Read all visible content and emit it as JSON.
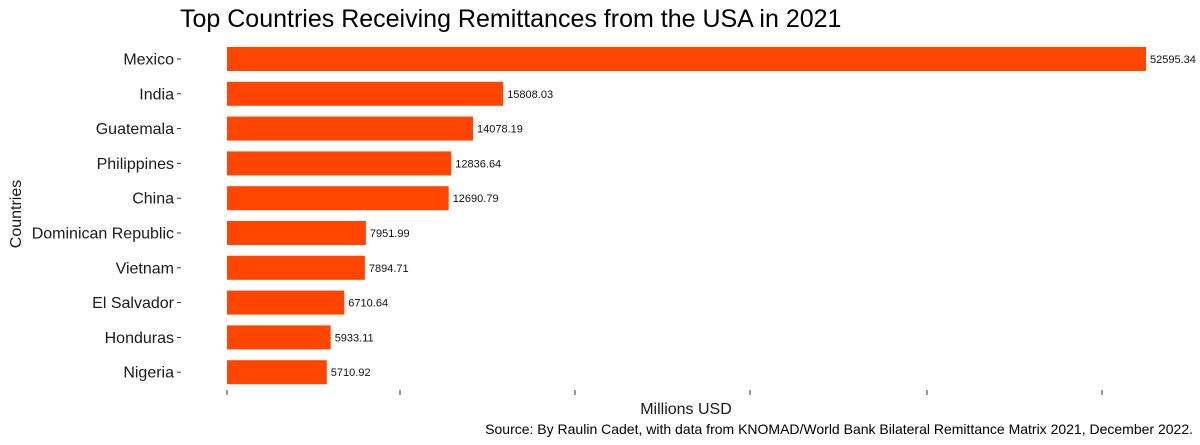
{
  "chart_data": {
    "type": "bar",
    "orientation": "horizontal",
    "title": "Top Countries Receiving Remittances from the USA in 2021",
    "xlabel": "Millions USD",
    "ylabel": "Countries",
    "caption": "Source: By Raulin Cadet, with data from KNOMAD/World Bank Bilateral Remittance Matrix 2021, December 2022.",
    "categories": [
      "Mexico",
      "India",
      "Guatemala",
      "Philippines",
      "China",
      "Dominican Republic",
      "Vietnam",
      "El Salvador",
      "Honduras",
      "Nigeria"
    ],
    "values": [
      52595.34,
      15808.03,
      14078.19,
      12836.64,
      12690.79,
      7951.99,
      7894.71,
      6710.64,
      5933.11,
      5710.92
    ],
    "value_labels": [
      "52595.34",
      "15808.03",
      "14078.19",
      "12836.64",
      "12690.79",
      "7951.99",
      "7894.71",
      "6710.64",
      "5933.11",
      "5710.92"
    ],
    "x_ticks": [
      0,
      10000,
      20000,
      30000,
      40000,
      50000
    ],
    "xlim": [
      0,
      52595.34
    ],
    "bar_color": "#FF4500",
    "grid": false,
    "legend": "none"
  }
}
